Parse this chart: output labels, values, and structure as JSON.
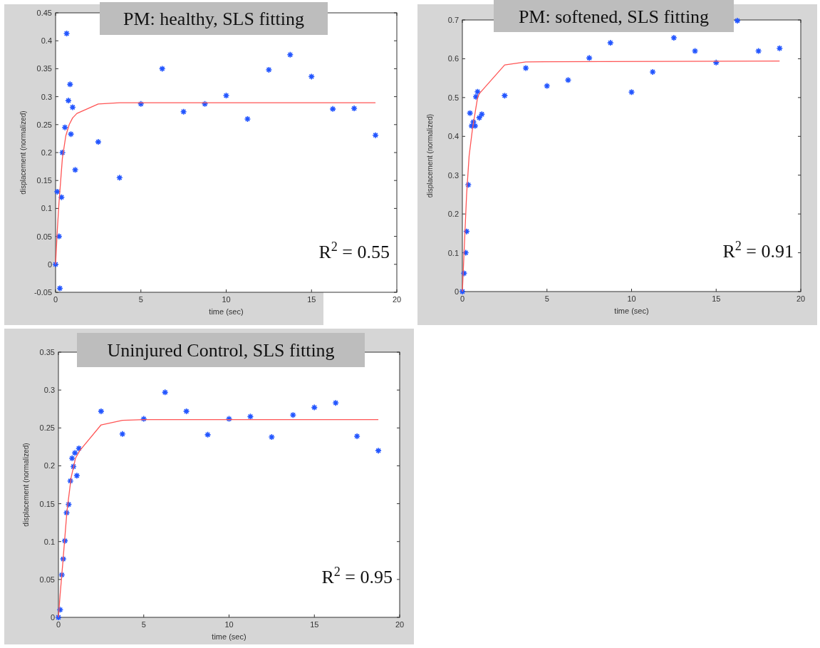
{
  "chart_data": [
    {
      "type": "scatter",
      "title": "PM: healthy, SLS fitting",
      "xlabel": "time (sec)",
      "ylabel": "displacement (normalized)",
      "xlim": [
        0,
        20
      ],
      "xticks": [
        0,
        5,
        10,
        15,
        20
      ],
      "ylim": [
        -0.05,
        0.45
      ],
      "yticks": [
        -0.05,
        0,
        0.05,
        0.1,
        0.15,
        0.2,
        0.25,
        0.3,
        0.35,
        0.4,
        0.45
      ],
      "grid": false,
      "annotations": [
        "R$^{2}$ = 0.55"
      ],
      "series": [
        {
          "marker": "cross",
          "color": "#2255ff",
          "x": [
            0,
            0.1,
            0.2,
            0.25,
            0.35,
            0.4,
            0.55,
            0.65,
            0.75,
            0.85,
            0.9,
            1.0,
            1.15,
            2.5,
            3.75,
            5,
            6.25,
            7.5,
            8.75,
            10,
            11.25,
            12.5,
            13.75,
            15,
            16.25,
            17.5,
            18.75
          ],
          "values": [
            0,
            0.13,
            0.05,
            -0.043,
            0.12,
            0.2,
            0.245,
            0.413,
            0.293,
            0.322,
            0.233,
            0.281,
            0.169,
            0.219,
            0.155,
            0.287,
            0.35,
            0.273,
            0.287,
            0.302,
            0.26,
            0.348,
            0.375,
            0.336,
            0.278,
            0.279,
            0.231
          ]
        },
        {
          "type": "line",
          "color": "#ff5555",
          "x": [
            0,
            0.1,
            0.2,
            0.4,
            0.6,
            0.8,
            1.0,
            1.25,
            2.5,
            3.75,
            18.75
          ],
          "values": [
            0,
            0.06,
            0.11,
            0.19,
            0.23,
            0.25,
            0.262,
            0.27,
            0.287,
            0.289,
            0.289
          ]
        }
      ]
    },
    {
      "type": "scatter",
      "title": "PM: softened, SLS fitting",
      "xlabel": "time (sec)",
      "ylabel": "displacement (normalized)",
      "xlim": [
        0,
        20
      ],
      "xticks": [
        0,
        5,
        10,
        15,
        20
      ],
      "ylim": [
        0,
        0.7
      ],
      "yticks": [
        0,
        0.1,
        0.2,
        0.3,
        0.4,
        0.5,
        0.6,
        0.7
      ],
      "grid": false,
      "annotations": [
        "R$^{2}$ = 0.91"
      ],
      "series": [
        {
          "marker": "cross",
          "color": "#2255ff",
          "x": [
            0,
            0.1,
            0.2,
            0.25,
            0.35,
            0.45,
            0.55,
            0.65,
            0.75,
            0.8,
            0.9,
            1.0,
            1.15,
            2.5,
            3.75,
            5,
            6.25,
            7.5,
            8.75,
            10,
            11.25,
            12.5,
            13.75,
            15,
            16.25,
            17.5,
            18.75
          ],
          "values": [
            0,
            0.047,
            0.1,
            0.155,
            0.275,
            0.46,
            0.427,
            0.437,
            0.427,
            0.502,
            0.515,
            0.448,
            0.457,
            0.505,
            0.576,
            0.53,
            0.545,
            0.602,
            0.641,
            0.514,
            0.566,
            0.654,
            0.62,
            0.59,
            0.698,
            0.62,
            0.627
          ]
        },
        {
          "type": "line",
          "color": "#ff5555",
          "x": [
            0,
            0.1,
            0.25,
            0.4,
            0.6,
            0.9,
            1.0,
            2.5,
            3.75,
            18.75
          ],
          "values": [
            0,
            0.1,
            0.25,
            0.35,
            0.42,
            0.5,
            0.51,
            0.584,
            0.592,
            0.594
          ]
        }
      ]
    },
    {
      "type": "scatter",
      "title": "Uninjured Control, SLS fitting",
      "xlabel": "time (sec)",
      "ylabel": "displacement (normalized)",
      "xlim": [
        0,
        20
      ],
      "xticks": [
        0,
        5,
        10,
        15,
        20
      ],
      "ylim": [
        0,
        0.35
      ],
      "yticks": [
        0,
        0.05,
        0.1,
        0.15,
        0.2,
        0.25,
        0.3,
        0.35
      ],
      "grid": false,
      "annotations": [
        "R$^{2}$ = 0.95"
      ],
      "series": [
        {
          "marker": "cross",
          "color": "#2255ff",
          "x": [
            0,
            0.1,
            0.2,
            0.28,
            0.38,
            0.48,
            0.6,
            0.7,
            0.8,
            0.88,
            0.97,
            1.08,
            1.2,
            2.5,
            3.75,
            5,
            6.25,
            7.5,
            8.75,
            10,
            11.25,
            12.5,
            13.75,
            15,
            16.25,
            17.5,
            18.75
          ],
          "values": [
            0,
            0.01,
            0.056,
            0.077,
            0.101,
            0.138,
            0.149,
            0.18,
            0.21,
            0.199,
            0.217,
            0.187,
            0.223,
            0.272,
            0.242,
            0.262,
            0.297,
            0.272,
            0.241,
            0.262,
            0.265,
            0.238,
            0.267,
            0.277,
            0.283,
            0.239,
            0.22
          ]
        },
        {
          "type": "line",
          "color": "#ff5555",
          "x": [
            0,
            0.1,
            0.25,
            0.5,
            0.75,
            1.0,
            1.25,
            2.5,
            3.75,
            5,
            18.75
          ],
          "values": [
            0,
            0.03,
            0.07,
            0.14,
            0.185,
            0.21,
            0.22,
            0.254,
            0.26,
            0.261,
            0.261
          ]
        }
      ]
    }
  ]
}
